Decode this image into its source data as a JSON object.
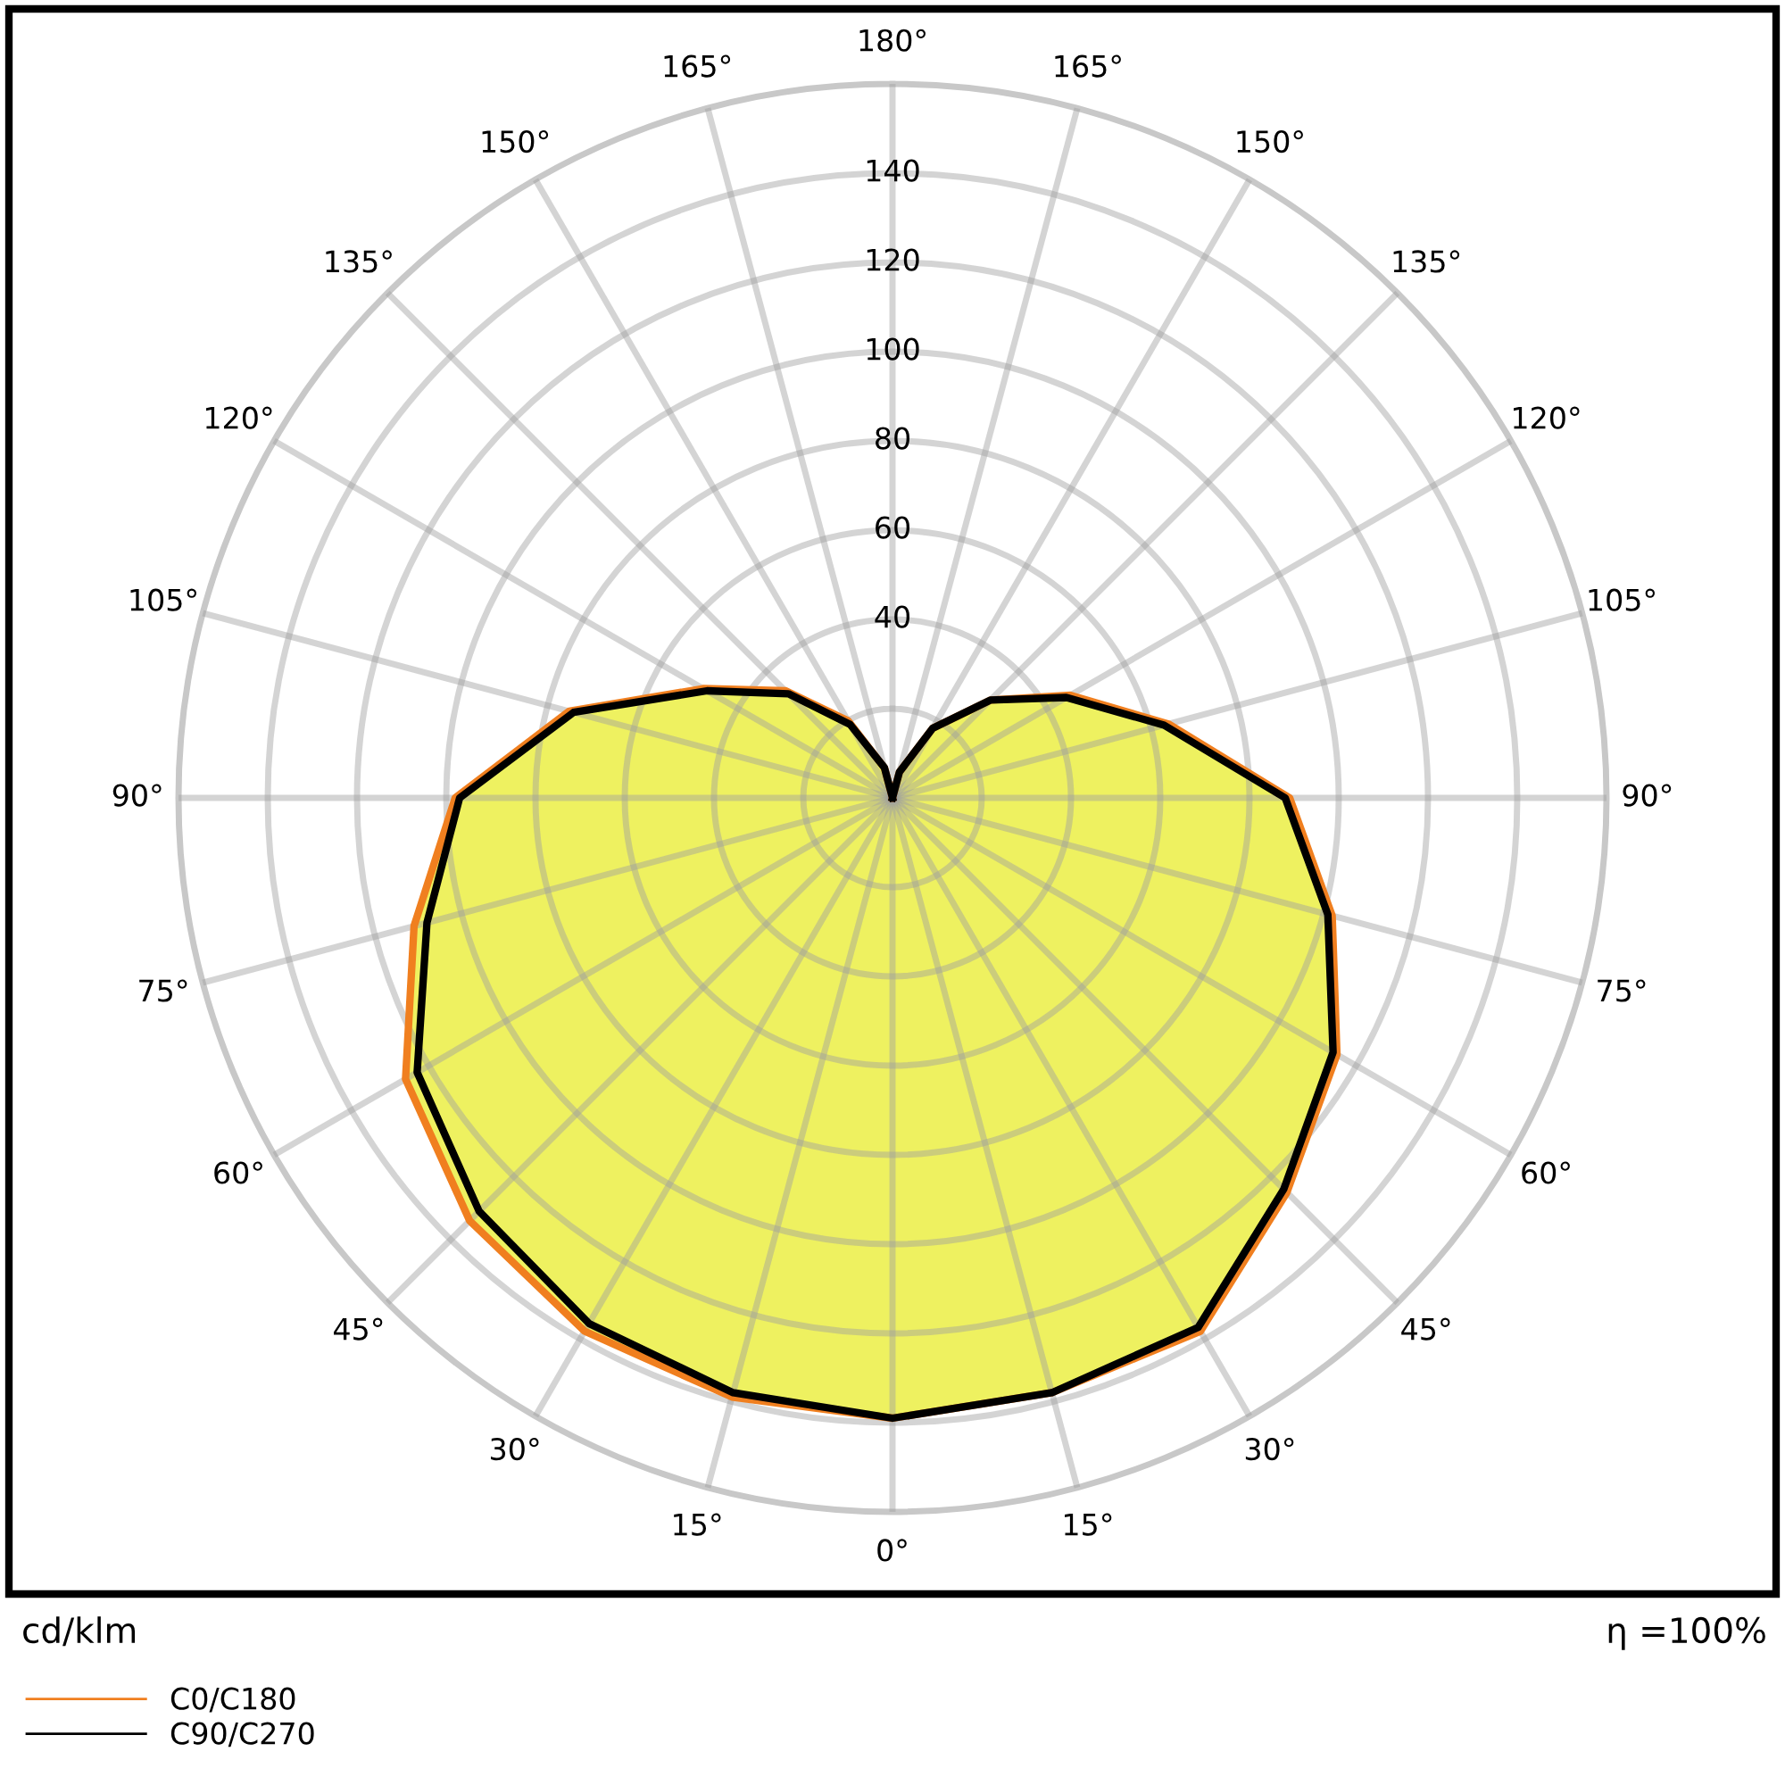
{
  "chart_data": {
    "type": "radar",
    "categories": [
      "180°",
      "165°",
      "150°",
      "135°",
      "120°",
      "105°",
      "90°",
      "75°",
      "60°",
      "45°",
      "30°",
      "15°",
      "0°",
      "15°",
      "30°",
      "45°",
      "60°",
      "75°",
      "90°",
      "105°",
      "120°",
      "135°",
      "150°",
      "165°"
    ],
    "series": [
      {
        "name": "C0/C180",
        "type": "area",
        "color": "#f07f1f",
        "values": [
          0,
          6,
          18,
          31,
          46,
          64,
          89,
          102,
          115,
          125,
          138,
          138,
          139,
          139,
          138,
          134,
          126,
          111,
          98,
          75,
          49,
          34,
          20,
          7
        ]
      },
      {
        "name": "C90/C270",
        "type": "area",
        "color": "#000000",
        "values": [
          0,
          6,
          18,
          31,
          45,
          63,
          88,
          101,
          114,
          124,
          137,
          138,
          139,
          138,
          136,
          131,
          123,
          108,
          97,
          74,
          48,
          33,
          19,
          7
        ]
      }
    ],
    "ylim": [
      0,
      160
    ],
    "yticks": [
      40,
      60,
      80,
      100,
      120,
      140
    ],
    "grid": true,
    "legend": "bottom left",
    "annotations": [
      "cd/klm",
      "η =100%"
    ]
  }
}
